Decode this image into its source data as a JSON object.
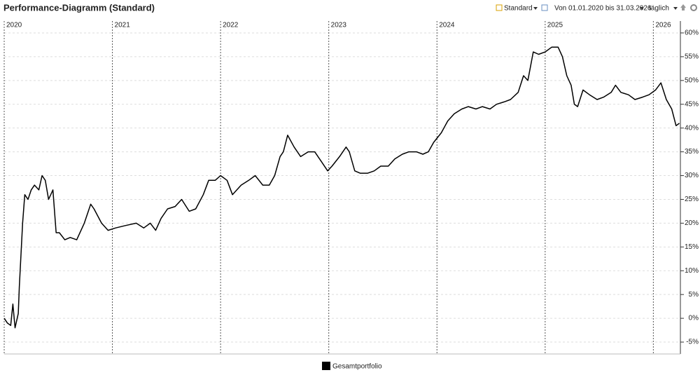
{
  "header": {
    "view": "Standard",
    "range": "Von 01.01.2020 bis 31.03.2026",
    "interval": "täglich"
  },
  "chart_data": {
    "type": "line",
    "title": "Performance-Diagramm (Standard)",
    "x": [
      2020.0,
      2020.03,
      2020.06,
      2020.08,
      2020.1,
      2020.13,
      2020.14,
      2020.17,
      2020.19,
      2020.22,
      2020.25,
      2020.28,
      2020.32,
      2020.35,
      2020.38,
      2020.41,
      2020.45,
      2020.48,
      2020.51,
      2020.56,
      2020.61,
      2020.67,
      2020.74,
      2020.8,
      2020.83,
      2020.9,
      2020.96,
      2021.03,
      2021.12,
      2021.22,
      2021.29,
      2021.35,
      2021.4,
      2021.45,
      2021.51,
      2021.58,
      2021.64,
      2021.71,
      2021.77,
      2021.84,
      2021.89,
      2021.95,
      2022.0,
      2022.06,
      2022.11,
      2022.19,
      2022.26,
      2022.32,
      2022.39,
      2022.45,
      2022.5,
      2022.55,
      2022.58,
      2022.62,
      2022.68,
      2022.74,
      2022.81,
      2022.87,
      2022.93,
      2022.99,
      2023.03,
      2023.1,
      2023.16,
      2023.19,
      2023.24,
      2023.29,
      2023.36,
      2023.42,
      2023.48,
      2023.55,
      2023.61,
      2023.68,
      2023.74,
      2023.81,
      2023.87,
      2023.92,
      2023.97,
      2024.04,
      2024.1,
      2024.16,
      2024.23,
      2024.29,
      2024.36,
      2024.42,
      2024.49,
      2024.55,
      2024.62,
      2024.68,
      2024.75,
      2024.8,
      2024.84,
      2024.89,
      2024.94,
      2025.0,
      2025.06,
      2025.12,
      2025.16,
      2025.2,
      2025.24,
      2025.27,
      2025.3,
      2025.35,
      2025.41,
      2025.48,
      2025.54,
      2025.61,
      2025.65,
      2025.7,
      2025.77,
      2025.83,
      2025.9,
      2025.96,
      2026.02,
      2026.07,
      2026.12,
      2026.17,
      2026.21,
      2026.24
    ],
    "series": [
      {
        "name": "Gesamtportfolio",
        "color": "#000000",
        "values": [
          0,
          -1,
          -1.5,
          3,
          -2,
          1,
          6.6,
          20,
          26,
          25,
          27,
          28,
          27,
          30,
          29,
          25,
          27,
          18,
          18,
          16.5,
          17,
          16.5,
          20,
          24,
          23,
          20,
          18.5,
          19,
          19.5,
          20,
          19,
          20,
          18.5,
          21,
          23,
          23.5,
          25,
          22.5,
          23,
          26,
          29,
          29,
          30,
          29,
          26,
          28,
          29,
          30,
          28,
          28,
          30,
          34,
          35,
          38.5,
          36,
          34,
          35,
          35,
          33,
          31,
          32,
          34,
          36,
          35,
          31,
          30.5,
          30.5,
          31,
          32,
          32,
          33.5,
          34.5,
          35,
          35,
          34.5,
          35,
          37,
          39,
          41.5,
          43,
          44,
          44.5,
          44,
          44.5,
          44,
          45,
          45.5,
          46,
          47.5,
          51,
          50,
          56,
          55.5,
          56,
          57,
          57,
          55,
          51,
          49,
          45,
          44.5,
          48,
          47,
          46,
          46.5,
          47.5,
          49,
          47.5,
          47,
          46,
          46.5,
          47,
          48,
          49.5,
          46,
          44,
          40.5,
          41
        ]
      }
    ],
    "xlim": [
      2020,
      2026.25
    ],
    "xticks": [
      2020,
      2021,
      2022,
      2023,
      2024,
      2025,
      2026
    ],
    "ylim": [
      -7.5,
      62.5
    ],
    "yticks": [
      {
        "value": -5,
        "label": "-5%"
      },
      {
        "value": 0,
        "label": "0%"
      },
      {
        "value": 5,
        "label": "5%"
      },
      {
        "value": 10,
        "label": "10%"
      },
      {
        "value": 15,
        "label": "15%"
      },
      {
        "value": 20,
        "label": "20%"
      },
      {
        "value": 25,
        "label": "25%"
      },
      {
        "value": 30,
        "label": "30%"
      },
      {
        "value": 35,
        "label": "35%"
      },
      {
        "value": 40,
        "label": "40%"
      },
      {
        "value": 45,
        "label": "45%"
      },
      {
        "value": 50,
        "label": "50%"
      },
      {
        "value": 55,
        "label": "55%"
      },
      {
        "value": 60,
        "label": "60%"
      }
    ],
    "grid": true
  }
}
